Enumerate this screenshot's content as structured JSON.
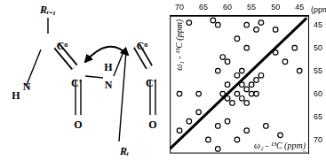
{
  "structure": {
    "atoms": [
      "Rᵢ₋₁",
      "Cᵅ",
      "C′",
      "H",
      "N",
      "O",
      "H",
      "N",
      "Cᵅ",
      "C′",
      "O",
      "Rᵢ"
    ]
  },
  "chart_data": {
    "type": "scatter",
    "xlabel": "ω₂ - ¹³C (ppm)",
    "ylabel": "ω₁ - ¹³C (ppm)",
    "unit_label": "(ppm)",
    "xlim": [
      72,
      43
    ],
    "ylim": [
      43,
      73
    ],
    "xticks": [
      70,
      65,
      60,
      55,
      50,
      45
    ],
    "yticks": [
      45,
      50,
      55,
      60,
      65,
      70
    ],
    "grid": false,
    "legend": false,
    "series": [
      {
        "type": "scatter",
        "color": "#000000",
        "marker": "circle",
        "x": [
          58,
          57,
          56,
          55,
          54,
          57,
          59,
          60,
          55,
          56,
          58,
          53,
          54,
          57,
          60,
          61,
          56,
          54,
          53,
          50,
          62,
          63,
          68,
          58,
          56,
          50,
          48,
          46,
          45,
          60,
          62,
          61,
          70,
          66,
          62,
          64,
          58,
          56,
          62,
          60,
          68,
          52,
          49,
          47,
          44,
          70,
          66
        ],
        "values": [
          60,
          61,
          59,
          58,
          57,
          58,
          62,
          61,
          60,
          62,
          56,
          56,
          60,
          55,
          58,
          60,
          45,
          46,
          44.5,
          46,
          45,
          44,
          44.5,
          48,
          50,
          51,
          53,
          50,
          55,
          53,
          55,
          52,
          60,
          60,
          67,
          70,
          70,
          68,
          72,
          66,
          66,
          67,
          69,
          71,
          72,
          68,
          64
        ]
      },
      {
        "type": "line",
        "color": "#000000",
        "line_style": "solid",
        "x": [
          72,
          43.5
        ],
        "values": [
          72,
          43.5
        ]
      }
    ]
  }
}
